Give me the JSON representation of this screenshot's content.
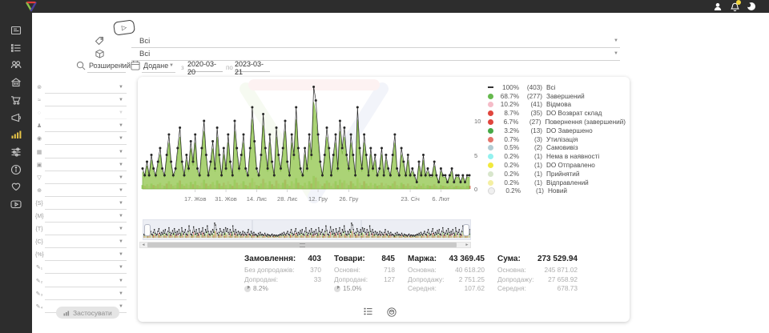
{
  "topbar": {
    "icons": [
      {
        "name": "user-icon"
      },
      {
        "name": "notifications-bell-icon",
        "badge": true
      },
      {
        "name": "theme-moon-icon"
      }
    ]
  },
  "sidebar": {
    "items": [
      {
        "icon": "dashboard-icon"
      },
      {
        "icon": "orders-list-icon"
      },
      {
        "icon": "clients-icon"
      },
      {
        "icon": "warehouse-icon"
      },
      {
        "icon": "cart-icon"
      },
      {
        "icon": "marketing-megaphone-icon"
      },
      {
        "icon": "statistics-bars-icon",
        "active": true
      },
      {
        "icon": "settings-sliders-icon"
      },
      {
        "icon": "info-icon"
      },
      {
        "icon": "loyalty-heart-icon"
      },
      {
        "icon": "video-tutorials-icon"
      }
    ]
  },
  "filter_panel": {
    "rows": [
      {
        "icon": "source-globe-icon"
      },
      {
        "icon": "trend-icon",
        "disabled": false
      },
      {
        "icon": "status-circle-icon",
        "disabled": true
      },
      {
        "icon": "group-icon"
      },
      {
        "icon": "payment-coin-icon"
      },
      {
        "icon": "gift-icon"
      },
      {
        "icon": "image-icon"
      },
      {
        "icon": "funnel-icon"
      },
      {
        "icon": "web-globe-icon"
      },
      {
        "icon": "braces-s-icon"
      },
      {
        "icon": "braces-m-icon"
      },
      {
        "icon": "braces-t-icon"
      },
      {
        "icon": "braces-c-icon"
      },
      {
        "icon": "braces-percent-icon"
      },
      {
        "icon": "custom-field-1-icon"
      },
      {
        "icon": "custom-field-2-icon"
      },
      {
        "icon": "custom-field-3-icon"
      },
      {
        "icon": "custom-field-4-icon"
      }
    ],
    "row_glyphs": {
      "source-globe-icon": "⊚",
      "trend-icon": "≈",
      "status-circle-icon": "○",
      "group-icon": "♟",
      "payment-coin-icon": "◉",
      "gift-icon": "▦",
      "image-icon": "▣",
      "funnel-icon": "▽",
      "web-globe-icon": "⊕",
      "braces-s-icon": "{S}",
      "braces-m-icon": "{M}",
      "braces-t-icon": "{T}",
      "braces-c-icon": "{C}",
      "braces-percent-icon": "{%}",
      "custom-field-1-icon": "✎₁",
      "custom-field-2-icon": "✎₂",
      "custom-field-3-icon": "✎₃",
      "custom-field-4-icon": "✎₄"
    },
    "apply_label": "Застосувати"
  },
  "toolbar": {
    "select1": {
      "icon": "categories-tags-icon",
      "value": "Всі"
    },
    "select2": {
      "icon": "product-cube-icon",
      "value": "Всі"
    },
    "mode_select": {
      "icon": "search-icon",
      "value": "Розширений"
    },
    "date_type_select": {
      "icon": "calendar-icon",
      "value": "Додане"
    },
    "date_range": {
      "from_label": "з",
      "from": "2020-03-20",
      "to_label": "по",
      "to": "2023-03-21"
    }
  },
  "chart_data": {
    "type": "line-area-bars",
    "description": "Orders per day with completed share area and per-status mini bars",
    "ylim": [
      0,
      16
    ],
    "yticks": [
      0,
      5,
      10
    ],
    "grid": false,
    "legend_position": "right",
    "x_ticks": [
      {
        "label": "17. Жов",
        "index": 24
      },
      {
        "label": "31. Жов",
        "index": 38
      },
      {
        "label": "14. Лис",
        "index": 52
      },
      {
        "label": "28. Лис",
        "index": 66
      },
      {
        "label": "12. Гру",
        "index": 80
      },
      {
        "label": "26. Гру",
        "index": 94
      },
      {
        "label": "23. Січ",
        "index": 122
      },
      {
        "label": "6. Лют",
        "index": 136
      }
    ],
    "values": [
      3,
      2,
      4,
      2,
      5,
      3,
      2,
      4,
      6,
      3,
      2,
      5,
      8,
      4,
      2,
      3,
      6,
      9,
      4,
      2,
      5,
      3,
      7,
      4,
      8,
      3,
      2,
      6,
      10,
      5,
      2,
      4,
      7,
      3,
      9,
      5,
      2,
      6,
      3,
      8,
      4,
      2,
      10,
      6,
      3,
      5,
      8,
      3,
      2,
      6,
      12,
      7,
      3,
      2,
      5,
      11,
      6,
      3,
      8,
      4,
      2,
      9,
      5,
      3,
      6,
      10,
      4,
      2,
      8,
      5,
      12,
      6,
      3,
      2,
      6,
      3,
      8,
      5,
      15,
      13,
      8,
      4,
      2,
      5,
      9,
      6,
      2,
      5,
      8,
      3,
      10,
      6,
      9,
      5,
      3,
      8,
      5,
      2,
      12,
      6,
      3,
      8,
      5,
      2,
      6,
      3,
      5,
      2,
      3,
      6,
      2,
      5,
      3,
      2,
      5,
      8,
      3,
      2,
      6,
      4,
      2,
      5,
      2,
      3,
      2,
      1,
      4,
      2,
      5,
      2,
      3,
      2,
      2,
      4,
      2,
      1,
      3,
      2,
      2,
      1,
      2,
      3,
      1,
      2,
      2,
      1,
      2,
      1,
      2,
      2
    ],
    "completed_ratio": 0.687,
    "bar_palette": [
      "#9fd36a",
      "#e88b85",
      "#b5dc82",
      "#f3bfca",
      "#8cc860",
      "#e06a62"
    ],
    "line_color": "#262626",
    "area_fill": "#9ccb5e",
    "area_stroke": "#7cb342",
    "legend": [
      {
        "swatch": "line",
        "color": "#333333",
        "percent": "100%",
        "count": "(403)",
        "label": "Всі"
      },
      {
        "swatch": "dot",
        "color": "#66b94e",
        "percent": "68.7%",
        "count": "(277)",
        "label": "Завершений"
      },
      {
        "swatch": "dot",
        "color": "#f5bcc8",
        "percent": "10.2%",
        "count": "(41)",
        "label": "Відмова"
      },
      {
        "swatch": "dot",
        "color": "#e0453d",
        "percent": "8.7%",
        "count": "(35)",
        "label": "DO Возврат склад"
      },
      {
        "swatch": "dot",
        "color": "#e0453d",
        "percent": "6.7%",
        "count": "(27)",
        "label": "Повернення (завершений)"
      },
      {
        "swatch": "dot",
        "color": "#46a946",
        "percent": "3.2%",
        "count": "(13)",
        "label": "DO Завершено"
      },
      {
        "swatch": "dot",
        "color": "#e4746a",
        "percent": "0.7%",
        "count": "(3)",
        "label": "Утилізація"
      },
      {
        "swatch": "dot",
        "color": "#b2ccd3",
        "percent": "0.5%",
        "count": "(2)",
        "label": "Самовивіз"
      },
      {
        "swatch": "dot",
        "color": "#93f1ef",
        "percent": "0.2%",
        "count": "(1)",
        "label": "Нема в наявності"
      },
      {
        "swatch": "dot",
        "color": "#f1e93e",
        "percent": "0.2%",
        "count": "(1)",
        "label": "DO Отправлено"
      },
      {
        "swatch": "dot",
        "color": "#d8e6cc",
        "percent": "0.2%",
        "count": "(1)",
        "label": "Прийнятий"
      },
      {
        "swatch": "dot",
        "color": "#f4efa2",
        "percent": "0.2%",
        "count": "(1)",
        "label": "Відправлений"
      },
      {
        "swatch": "dot",
        "color": "#f0f0f0",
        "percent": "0.2%",
        "count": "(1)",
        "label": "Новий"
      }
    ]
  },
  "stats": {
    "columns": [
      {
        "title": "Замовлення:",
        "value": "403",
        "rows": [
          {
            "label": "Без допродажів:",
            "value": "370"
          },
          {
            "label": "Допродані:",
            "value": "33"
          }
        ],
        "percent": "8.2%"
      },
      {
        "title": "Товари:",
        "value": "845",
        "rows": [
          {
            "label": "Основні:",
            "value": "718"
          },
          {
            "label": "Допродані:",
            "value": "127"
          }
        ],
        "percent": "15.0%"
      },
      {
        "title": "Маржа:",
        "value": "43 369.45",
        "rows": [
          {
            "label": "Основна:",
            "value": "40 618.20"
          },
          {
            "label": "Допродажу:",
            "value": "2 751.25"
          },
          {
            "label": "Середня:",
            "value": "107.62"
          }
        ]
      },
      {
        "title": "Сума:",
        "value": "273 529.94",
        "rows": [
          {
            "label": "Основна:",
            "value": "245 871.02"
          },
          {
            "label": "Допродажу:",
            "value": "27 658.92"
          },
          {
            "label": "Середня:",
            "value": "678.73"
          }
        ]
      }
    ]
  },
  "footer": {
    "icons": [
      {
        "name": "list-settings-icon"
      },
      {
        "name": "package-circle-icon"
      }
    ]
  }
}
